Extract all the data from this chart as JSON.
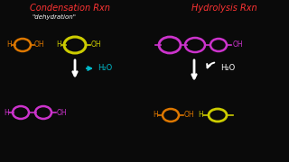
{
  "bg_color": "#0a0a0a",
  "title_condensation": "Condensation Rxn",
  "title_condensation_color": "#ff3333",
  "subtitle_condensation": "\"dehydration\"",
  "subtitle_color": "#ffffff",
  "title_hydrolysis": "Hydrolysis Rxn",
  "title_hydrolysis_color": "#ff3333",
  "h2o_color_left": "#00bbcc",
  "h2o_color_right": "#ffffff",
  "arrow_color": "#ffffff",
  "orange_color": "#dd7700",
  "yellow_color": "#cccc00",
  "purple_color": "#cc33cc",
  "lw_oval": 1.8,
  "lw_line": 1.2,
  "fontsize_title": 7,
  "fontsize_sub": 5,
  "fontsize_mol": 5.5
}
